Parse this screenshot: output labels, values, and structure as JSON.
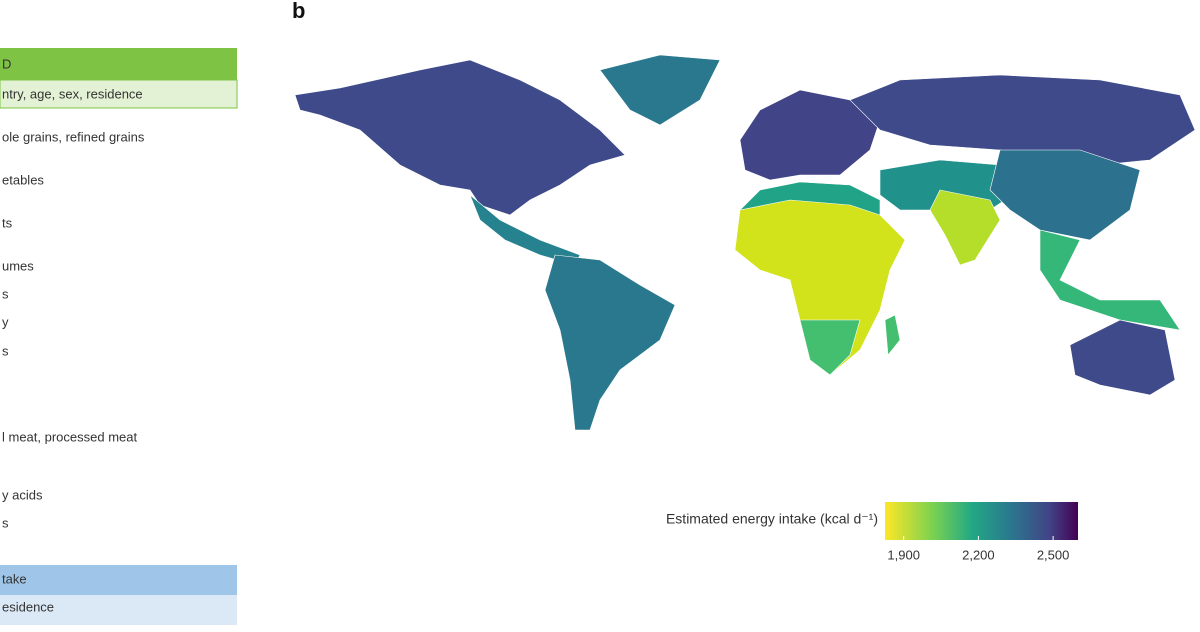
{
  "panel_label": "b",
  "left_panel": {
    "rows": [
      "D",
      "ntry, age, sex, residence",
      "ole grains, refined grains",
      "etables",
      "ts",
      "umes",
      "s",
      "y",
      "s",
      "l meat, processed meat",
      "y acids",
      "s",
      "take",
      "esidence"
    ]
  },
  "legend": {
    "title": "Estimated energy intake (kcal d⁻¹)",
    "range": [
      1825,
      2600
    ],
    "ticks": [
      {
        "value": 1900,
        "label": "1,900"
      },
      {
        "value": 2200,
        "label": "2,200"
      },
      {
        "value": 2500,
        "label": "2,500"
      }
    ]
  }
}
